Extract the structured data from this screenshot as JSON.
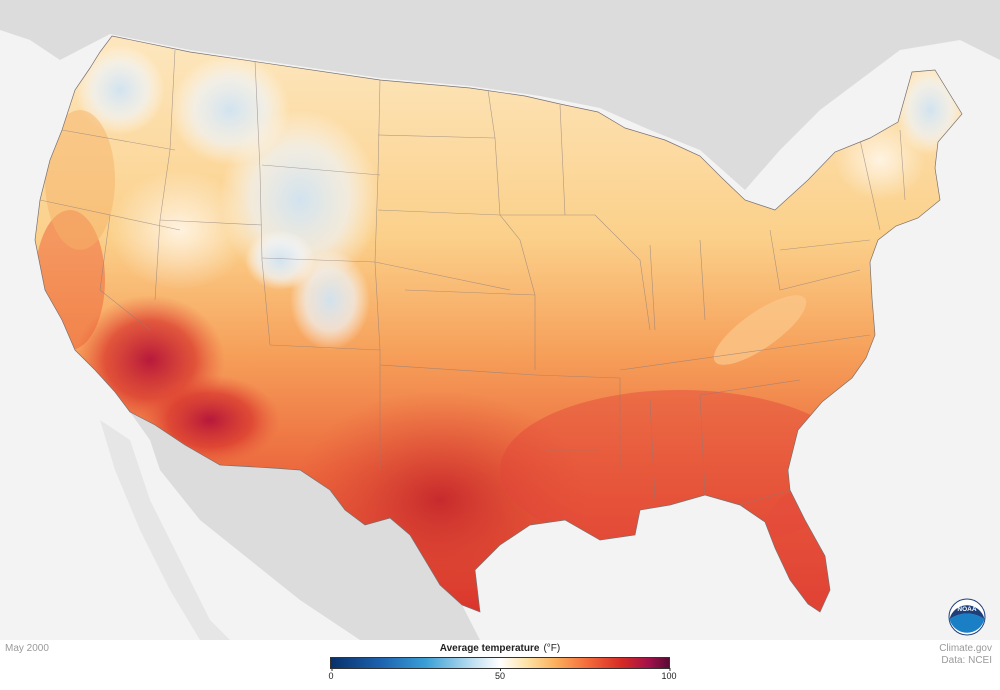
{
  "map": {
    "date_label": "May 2000",
    "credit_line1": "Climate.gov",
    "credit_line2": "Data: NCEI",
    "logo_text": "NOAA",
    "background_color": "#f3f3f3",
    "land_outside_color": "#dcdcdc",
    "water_color": "#f3f3f3"
  },
  "legend": {
    "title": "Average temperature",
    "unit": "(°F)",
    "ticks": [
      "0",
      "50",
      "100"
    ],
    "range": [
      0,
      100
    ],
    "colors": {
      "cold": "#08306b",
      "cool": "#3a9fd6",
      "neutral": "#ffffff",
      "warm": "#fbb25e",
      "hot": "#d62a25",
      "hottest": "#5a0a36"
    }
  }
}
